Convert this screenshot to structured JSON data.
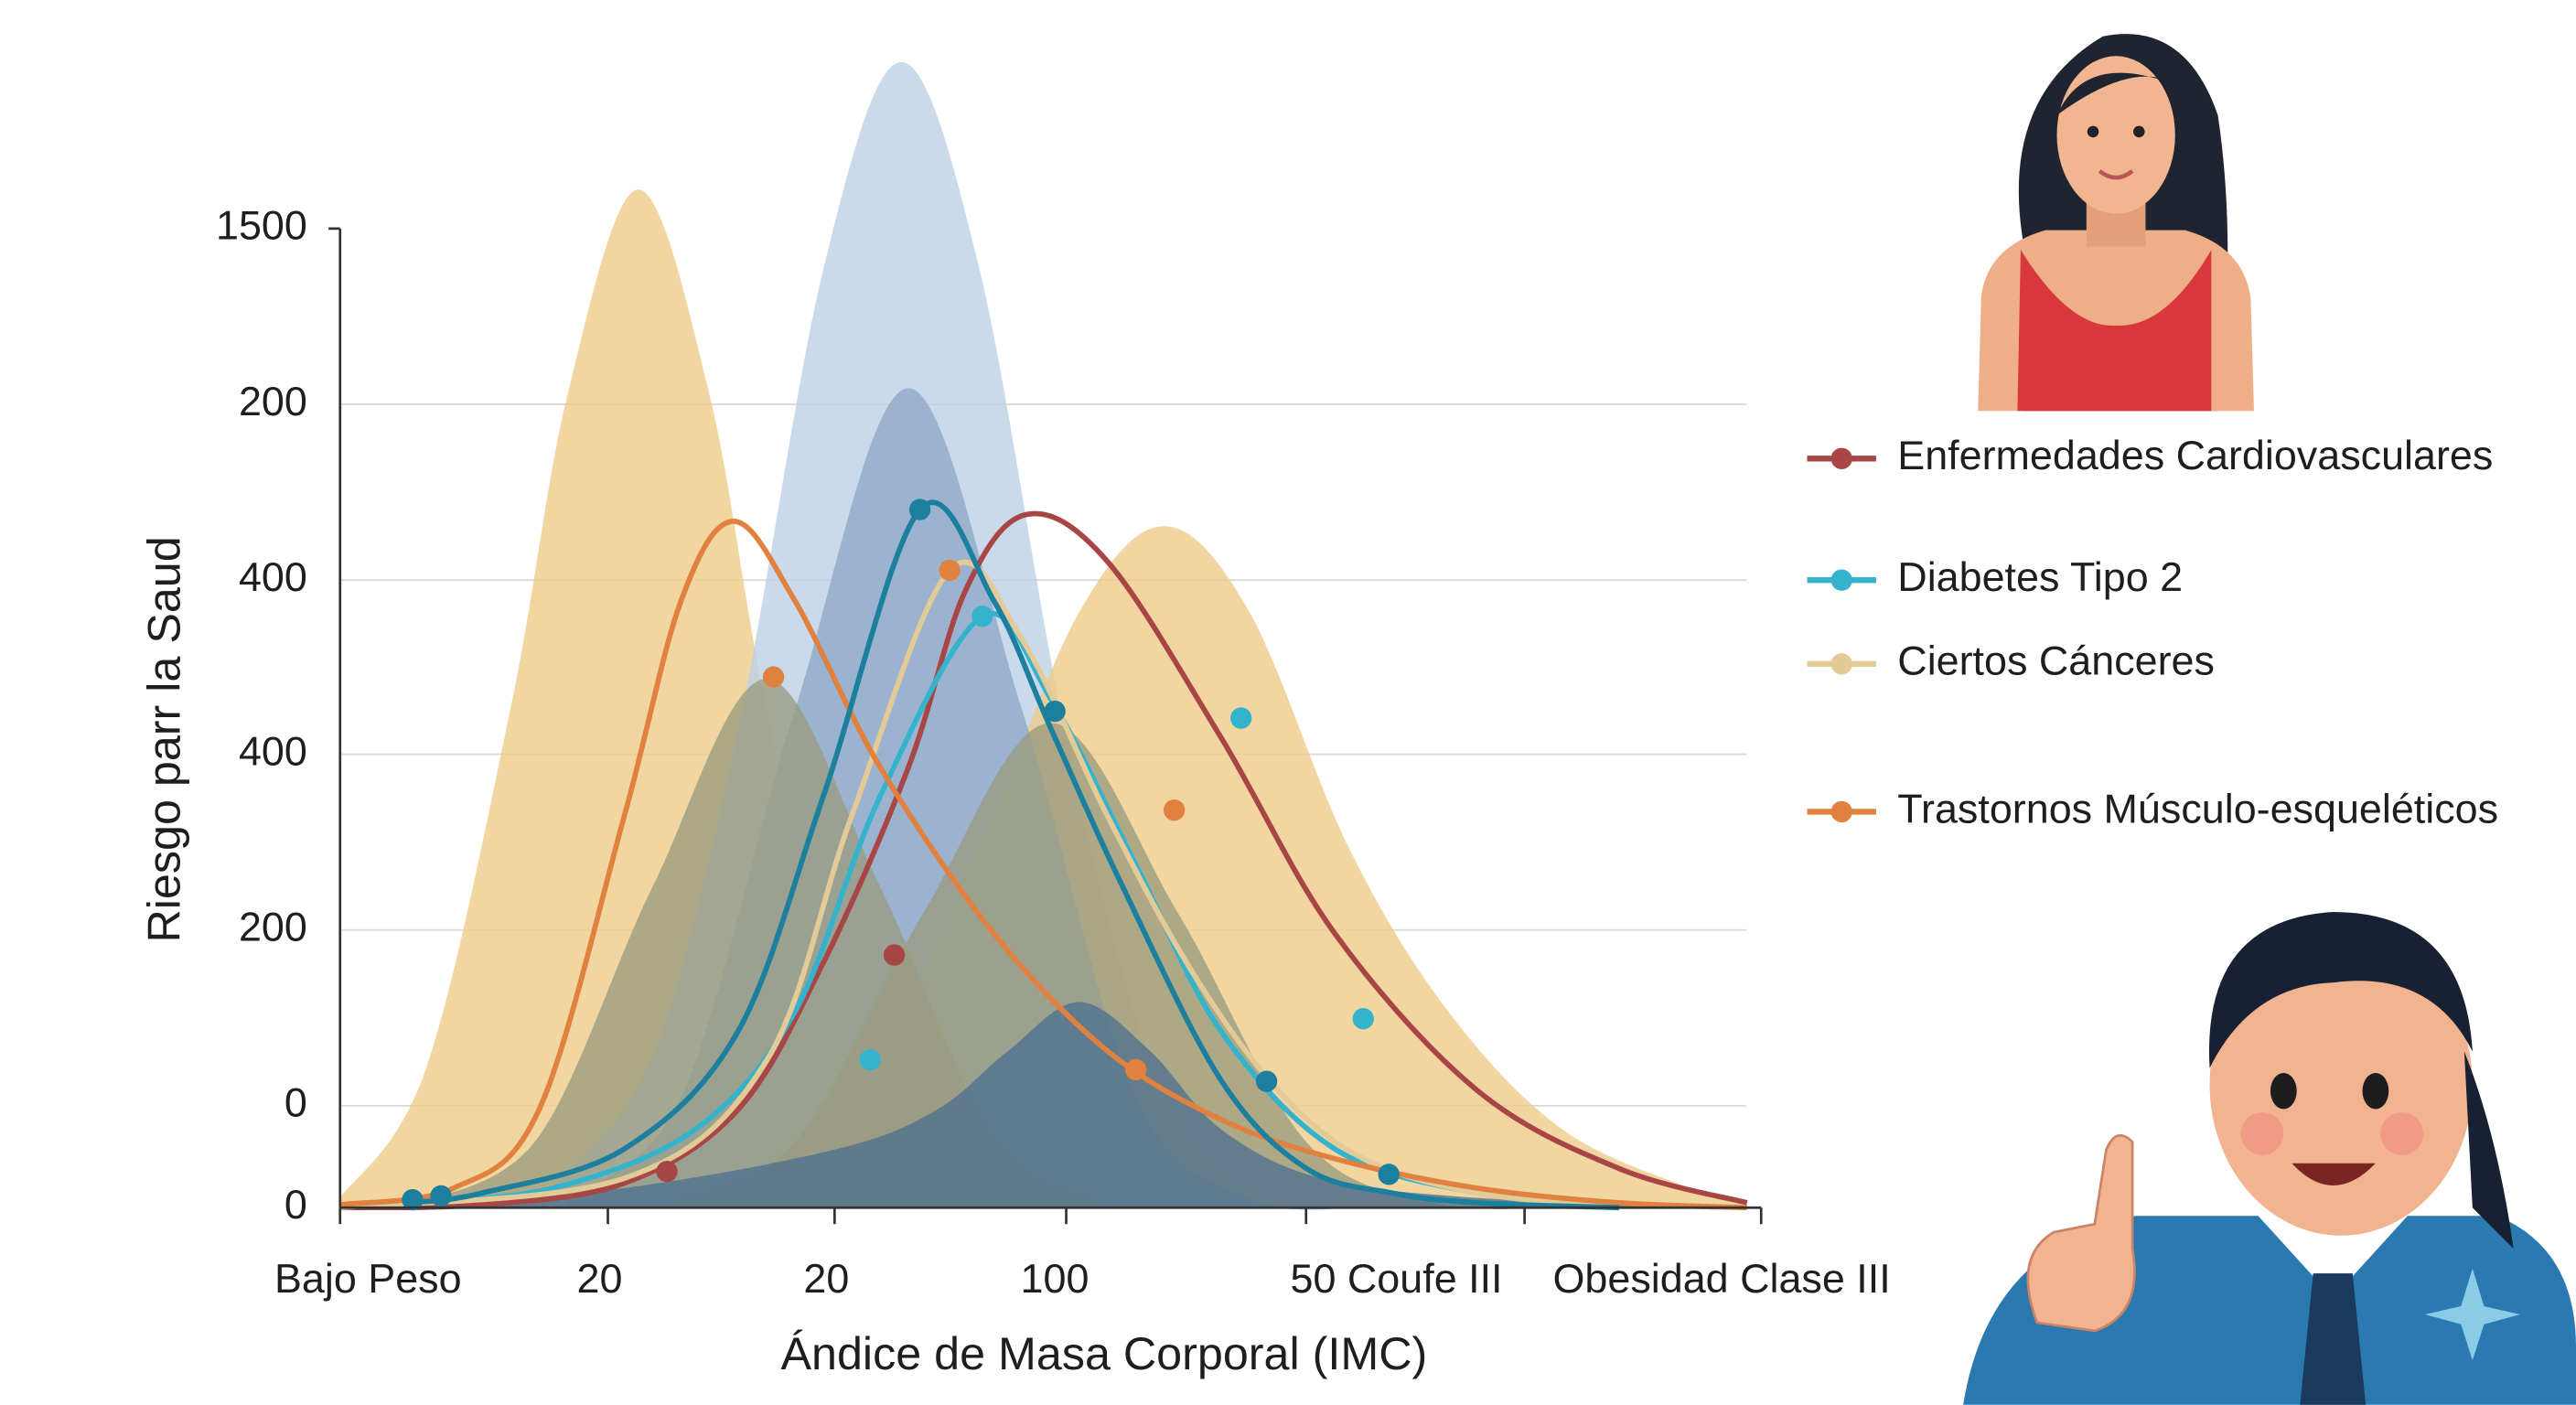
{
  "chart_data": {
    "type": "line",
    "x_title": "Ándice de Masa Corporal (IMC)",
    "y_title": "Riesgo parr la Saud",
    "x_labels": [
      "Bajo Peso",
      "20",
      "20",
      "100",
      "50 Coufe III",
      "Obesidad Clase III"
    ],
    "y_labels": [
      "0",
      "0",
      "200",
      "400",
      "400",
      "200",
      "1500"
    ],
    "xlim": [
      0,
      100
    ],
    "ylim": [
      0,
      100
    ],
    "grid": true,
    "areas": [
      {
        "color": "#eecb86",
        "x": [
          0,
          6,
          12,
          16,
          21,
          26,
          30,
          36,
          42,
          50
        ],
        "values": [
          1,
          14,
          51,
          83,
          104,
          83,
          51,
          14,
          2.1,
          0.1
        ]
      },
      {
        "color": "#bccfe6",
        "x": [
          15,
          22,
          28,
          34,
          39.5,
          45,
          51,
          57,
          64,
          72
        ],
        "values": [
          2.2,
          15.5,
          48.8,
          95.8,
          117,
          95.8,
          48.8,
          15.5,
          2.2,
          0.1
        ]
      },
      {
        "color": "#eecb86",
        "x": [
          30,
          38,
          45,
          52,
          58,
          64,
          71,
          78,
          86,
          95,
          99
        ],
        "values": [
          3.6,
          15.3,
          36.7,
          60.8,
          69.6,
          60.8,
          36.7,
          20,
          8,
          2,
          0.5
        ]
      },
      {
        "color": "#8ea8c8",
        "x": [
          16,
          24,
          32,
          40,
          48,
          56,
          64,
          72
        ],
        "values": [
          0.9,
          11.3,
          50.8,
          83.7,
          50.8,
          11.3,
          0.9,
          0
        ]
      },
      {
        "color": "#9a9c80",
        "x": [
          6,
          14,
          22,
          30,
          38,
          46,
          54,
          62
        ],
        "values": [
          0.6,
          7.3,
          32.8,
          54,
          32.8,
          7.3,
          0.6,
          0
        ]
      },
      {
        "color": "#9a9c80",
        "x": [
          23,
          32,
          41,
          50,
          59,
          68,
          77,
          86
        ],
        "values": [
          0.5,
          6.7,
          30,
          49.5,
          30,
          6.7,
          0.5,
          0
        ]
      },
      {
        "color": "#4e7190",
        "x": [
          5,
          20,
          35,
          42,
          47,
          52,
          57,
          62,
          69,
          80,
          95
        ],
        "values": [
          0.3,
          2,
          6,
          10,
          16,
          21,
          16,
          8,
          3,
          1,
          0.2
        ]
      }
    ],
    "series": [
      {
        "name": "Enfermedades Cardiovasculares",
        "color": "#a84545",
        "x": [
          0,
          10,
          20,
          28,
          34,
          40,
          44,
          48.3,
          54,
          62,
          70,
          80,
          90,
          99
        ],
        "values": [
          0,
          0.3,
          2.5,
          10,
          25,
          45,
          63,
          70.8,
          66,
          48,
          28,
          12,
          4,
          0.5
        ],
        "markers": {
          "x": [
            23,
            39
          ],
          "values": [
            3.7,
            25.8
          ]
        }
      },
      {
        "name": "Diabetes Tipo 2",
        "color": "#35b3cc",
        "x": [
          5,
          15,
          25,
          32,
          38,
          45.2,
          50,
          56,
          62,
          70,
          80,
          90
        ],
        "values": [
          0.5,
          2,
          8,
          20,
          42,
          60.4,
          52,
          35,
          18,
          6,
          1.5,
          0.3
        ],
        "markers": {
          "x": [
            37.3,
            45.2,
            63.4,
            72
          ],
          "values": [
            15.1,
            60.4,
            50,
            19.3
          ]
        }
      },
      {
        "name": "Ciertos Cánceres",
        "color": "#e2cb96",
        "x": [
          0,
          20,
          30,
          36,
          42.9,
          48,
          54,
          60,
          66,
          72,
          80,
          90
        ],
        "values": [
          0,
          3,
          15,
          40,
          65.1,
          58,
          40,
          24,
          12,
          5,
          1.5,
          0
        ],
        "markers": {
          "x": [],
          "values": []
        }
      },
      {
        "name": "Trastornos Músculo-esqueléticos",
        "color": "#e0813f",
        "x": [
          0,
          8,
          14,
          20,
          24,
          27.7,
          32,
          38,
          46,
          54,
          62,
          70,
          80,
          90,
          99
        ],
        "values": [
          0.3,
          2,
          10,
          40,
          62,
          70.1,
          62,
          45,
          28,
          16,
          9,
          5,
          2,
          0.5,
          0
        ],
        "markers": {
          "x": [
            30.5,
            42.9,
            56,
            58.7
          ],
          "values": [
            54.2,
            65.1,
            14.1,
            40.6
          ]
        }
      },
      {
        "color": "#1c7f9e",
        "x": [
          5,
          10,
          20,
          28,
          34,
          40.8,
          46,
          50,
          55,
          62,
          68,
          74,
          80,
          90
        ],
        "values": [
          0.5,
          1.5,
          6,
          18,
          42,
          71.3,
          62,
          49,
          33,
          13,
          4,
          1.5,
          0.5,
          0
        ],
        "markers": {
          "x": [
            5.1,
            7.1,
            40.8,
            50.3,
            65.2,
            73.8
          ],
          "values": [
            0.8,
            1.2,
            71.3,
            50.7,
            12.9,
            3.4
          ]
        }
      }
    ]
  }
}
